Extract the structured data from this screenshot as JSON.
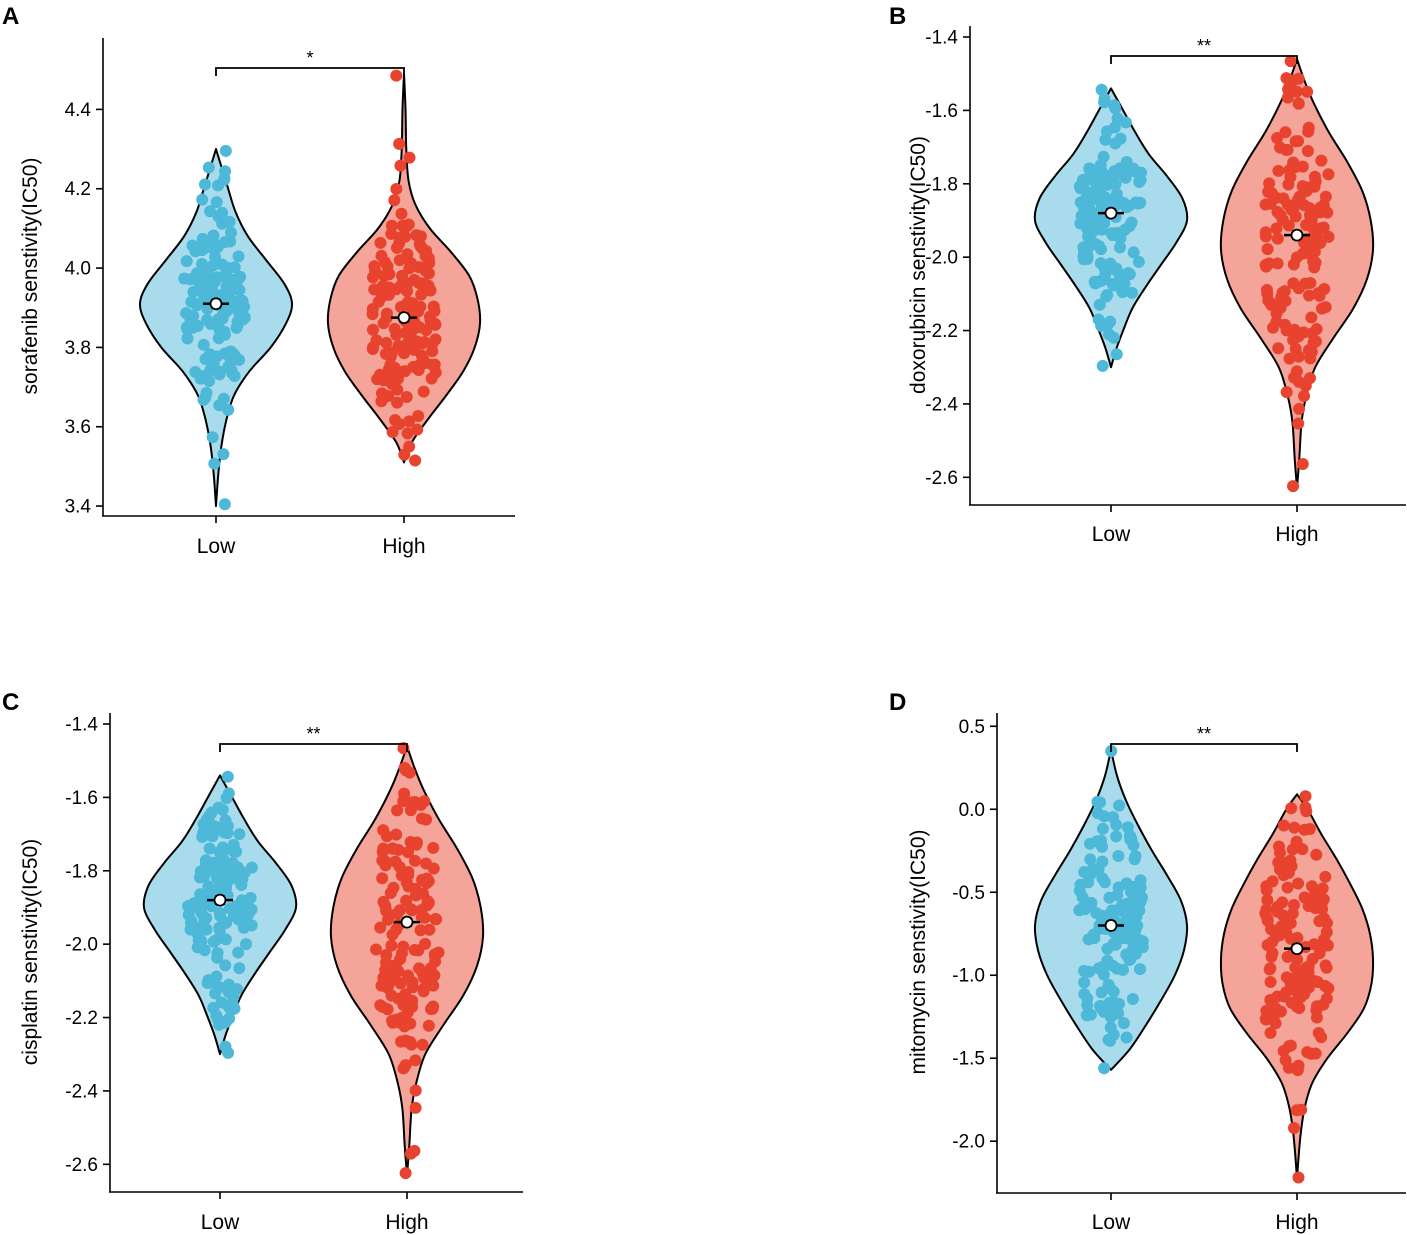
{
  "colors": {
    "low_point": "#4db8d8",
    "low_fill": "#a8dcec",
    "high_point": "#e8432e",
    "high_fill": "#f4a498",
    "outline": "#000000"
  },
  "chart_data": [
    {
      "type": "violin",
      "panel": "A",
      "ylabel": "sorafenib senstivity(IC50)",
      "categories": [
        "Low",
        "High"
      ],
      "yticks": [
        "3.4",
        "3.6",
        "3.8",
        "4.0",
        "4.2",
        "4.4"
      ],
      "ylim": [
        3.38,
        4.58
      ],
      "significance": "*",
      "series": [
        {
          "name": "Low",
          "mean": 3.91,
          "min": 3.4,
          "max": 4.3,
          "n": 150,
          "profile": [
            [
              3.4,
              0.0
            ],
            [
              3.48,
              0.03
            ],
            [
              3.55,
              0.07
            ],
            [
              3.62,
              0.14
            ],
            [
              3.68,
              0.24
            ],
            [
              3.74,
              0.44
            ],
            [
              3.8,
              0.72
            ],
            [
              3.86,
              0.92
            ],
            [
              3.91,
              1.0
            ],
            [
              3.96,
              0.9
            ],
            [
              4.02,
              0.66
            ],
            [
              4.08,
              0.42
            ],
            [
              4.14,
              0.26
            ],
            [
              4.2,
              0.16
            ],
            [
              4.25,
              0.08
            ],
            [
              4.3,
              0.0
            ]
          ]
        },
        {
          "name": "High",
          "mean": 3.875,
          "min": 3.51,
          "max": 4.49,
          "n": 150,
          "profile": [
            [
              3.51,
              0.0
            ],
            [
              3.56,
              0.1
            ],
            [
              3.62,
              0.32
            ],
            [
              3.68,
              0.56
            ],
            [
              3.74,
              0.78
            ],
            [
              3.8,
              0.93
            ],
            [
              3.86,
              1.0
            ],
            [
              3.92,
              0.97
            ],
            [
              3.98,
              0.86
            ],
            [
              4.04,
              0.62
            ],
            [
              4.1,
              0.34
            ],
            [
              4.16,
              0.15
            ],
            [
              4.22,
              0.06
            ],
            [
              4.3,
              0.03
            ],
            [
              4.4,
              0.02
            ],
            [
              4.49,
              0.0
            ]
          ]
        }
      ]
    },
    {
      "type": "violin",
      "panel": "B",
      "ylabel": "doxorubicin senstivity(IC50)",
      "categories": [
        "Low",
        "High"
      ],
      "yticks": [
        "-2.6",
        "-2.4",
        "-2.2",
        "-2.0",
        "-1.8",
        "-1.6",
        "-1.4"
      ],
      "ylim": [
        -2.67,
        -1.37
      ],
      "significance": "**",
      "series": [
        {
          "name": "Low",
          "mean": -1.88,
          "min": -2.3,
          "max": -1.54,
          "n": 150,
          "profile": [
            [
              -2.3,
              0.0
            ],
            [
              -2.25,
              0.07
            ],
            [
              -2.2,
              0.16
            ],
            [
              -2.14,
              0.28
            ],
            [
              -2.08,
              0.46
            ],
            [
              -2.02,
              0.66
            ],
            [
              -1.96,
              0.86
            ],
            [
              -1.9,
              1.0
            ],
            [
              -1.84,
              0.94
            ],
            [
              -1.78,
              0.74
            ],
            [
              -1.72,
              0.5
            ],
            [
              -1.66,
              0.32
            ],
            [
              -1.6,
              0.16
            ],
            [
              -1.54,
              0.0
            ]
          ]
        },
        {
          "name": "High",
          "mean": -1.94,
          "min": -2.63,
          "max": -1.46,
          "n": 150,
          "profile": [
            [
              -2.63,
              0.0
            ],
            [
              -2.55,
              0.03
            ],
            [
              -2.45,
              0.06
            ],
            [
              -2.38,
              0.12
            ],
            [
              -2.3,
              0.24
            ],
            [
              -2.22,
              0.48
            ],
            [
              -2.14,
              0.74
            ],
            [
              -2.06,
              0.92
            ],
            [
              -1.98,
              1.0
            ],
            [
              -1.9,
              0.97
            ],
            [
              -1.82,
              0.86
            ],
            [
              -1.74,
              0.66
            ],
            [
              -1.66,
              0.42
            ],
            [
              -1.58,
              0.22
            ],
            [
              -1.52,
              0.1
            ],
            [
              -1.46,
              0.0
            ]
          ]
        }
      ]
    },
    {
      "type": "violin",
      "panel": "C",
      "ylabel": "cisplatin senstivity(IC50)",
      "categories": [
        "Low",
        "High"
      ],
      "yticks": [
        "-2.6",
        "-2.4",
        "-2.2",
        "-2.0",
        "-1.8",
        "-1.6",
        "-1.4"
      ],
      "ylim": [
        -2.67,
        -1.37
      ],
      "significance": "**",
      "series": [
        {
          "name": "Low",
          "mean": -1.88,
          "min": -2.3,
          "max": -1.54,
          "n": 150,
          "profile": [
            [
              -2.3,
              0.0
            ],
            [
              -2.25,
              0.07
            ],
            [
              -2.2,
              0.16
            ],
            [
              -2.14,
              0.28
            ],
            [
              -2.08,
              0.46
            ],
            [
              -2.02,
              0.66
            ],
            [
              -1.96,
              0.86
            ],
            [
              -1.9,
              1.0
            ],
            [
              -1.84,
              0.94
            ],
            [
              -1.78,
              0.74
            ],
            [
              -1.72,
              0.5
            ],
            [
              -1.66,
              0.32
            ],
            [
              -1.6,
              0.16
            ],
            [
              -1.54,
              0.0
            ]
          ]
        },
        {
          "name": "High",
          "mean": -1.94,
          "min": -2.63,
          "max": -1.46,
          "n": 150,
          "profile": [
            [
              -2.63,
              0.0
            ],
            [
              -2.55,
              0.03
            ],
            [
              -2.45,
              0.06
            ],
            [
              -2.38,
              0.12
            ],
            [
              -2.3,
              0.24
            ],
            [
              -2.22,
              0.48
            ],
            [
              -2.14,
              0.74
            ],
            [
              -2.06,
              0.92
            ],
            [
              -1.98,
              1.0
            ],
            [
              -1.9,
              0.97
            ],
            [
              -1.82,
              0.86
            ],
            [
              -1.74,
              0.66
            ],
            [
              -1.66,
              0.42
            ],
            [
              -1.58,
              0.22
            ],
            [
              -1.52,
              0.1
            ],
            [
              -1.46,
              0.0
            ]
          ]
        }
      ]
    },
    {
      "type": "violin",
      "panel": "D",
      "ylabel": "mitomycin senstivity(IC50)",
      "categories": [
        "Low",
        "High"
      ],
      "yticks": [
        "-2.0",
        "-1.5",
        "-1.0",
        "-0.5",
        "0.0",
        "0.5"
      ],
      "ylim": [
        -2.3,
        0.58
      ],
      "significance": "**",
      "series": [
        {
          "name": "Low",
          "mean": -0.7,
          "min": -1.57,
          "max": 0.36,
          "n": 150,
          "profile": [
            [
              -1.57,
              0.0
            ],
            [
              -1.45,
              0.24
            ],
            [
              -1.3,
              0.46
            ],
            [
              -1.15,
              0.66
            ],
            [
              -1.0,
              0.84
            ],
            [
              -0.85,
              0.96
            ],
            [
              -0.7,
              1.0
            ],
            [
              -0.55,
              0.92
            ],
            [
              -0.4,
              0.74
            ],
            [
              -0.25,
              0.54
            ],
            [
              -0.1,
              0.36
            ],
            [
              0.05,
              0.2
            ],
            [
              0.2,
              0.08
            ],
            [
              0.36,
              0.0
            ]
          ]
        },
        {
          "name": "High",
          "mean": -0.84,
          "min": -2.23,
          "max": 0.09,
          "n": 150,
          "profile": [
            [
              -2.23,
              0.0
            ],
            [
              -2.1,
              0.02
            ],
            [
              -1.95,
              0.05
            ],
            [
              -1.8,
              0.1
            ],
            [
              -1.65,
              0.2
            ],
            [
              -1.5,
              0.4
            ],
            [
              -1.35,
              0.66
            ],
            [
              -1.2,
              0.88
            ],
            [
              -1.05,
              0.98
            ],
            [
              -0.9,
              1.0
            ],
            [
              -0.75,
              0.96
            ],
            [
              -0.6,
              0.86
            ],
            [
              -0.45,
              0.7
            ],
            [
              -0.3,
              0.52
            ],
            [
              -0.15,
              0.32
            ],
            [
              0.0,
              0.14
            ],
            [
              0.09,
              0.0
            ]
          ]
        }
      ]
    }
  ]
}
